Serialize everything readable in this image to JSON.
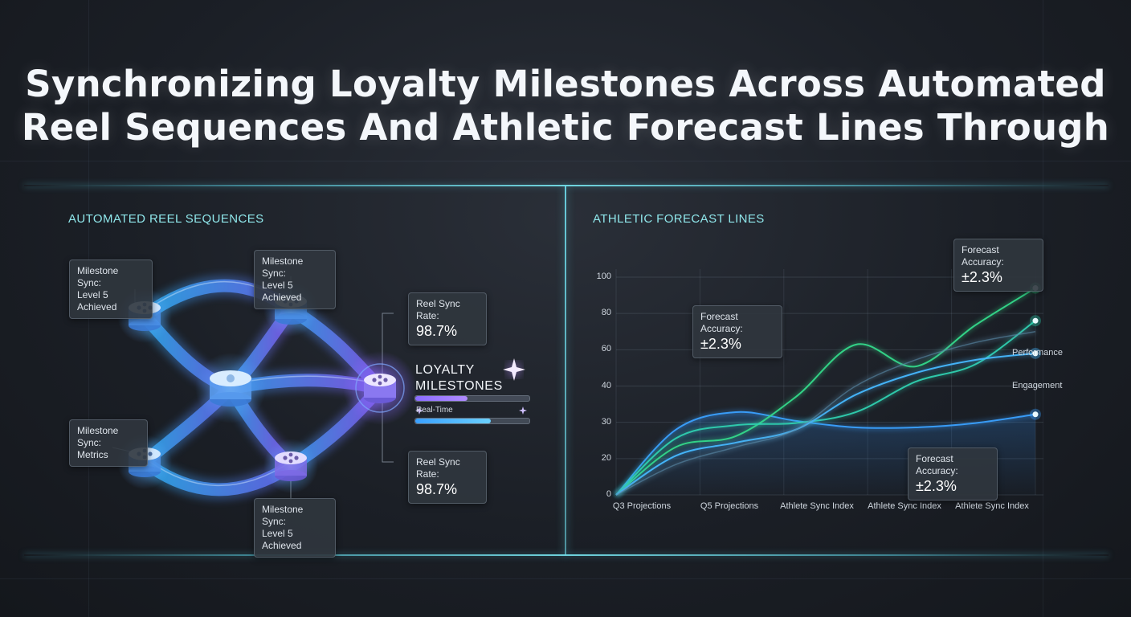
{
  "title": {
    "line1": "Synchronizing Loyalty Milestones Across Automated",
    "line2": "Reel Sequences And Athletic Forecast Lines Through"
  },
  "left_panel": {
    "label": "AUTOMATED REEL SEQUENCES",
    "callouts": [
      {
        "line1": "Milestone Sync:",
        "line2": "Level 5 Achieved"
      },
      {
        "line1": "Milestone Sync:",
        "line2": "Level 5 Achieved"
      },
      {
        "line1": "Milestone Sync:",
        "line2": "Metrics"
      },
      {
        "line1": "Milestone Sync:",
        "line2": "Level 5 Achieved"
      }
    ],
    "rate_cards": [
      {
        "label": "Reel Sync Rate:",
        "value": "98.7%"
      },
      {
        "label": "Reel Sync Rate:",
        "value": "98.7%"
      }
    ],
    "hub": {
      "title_line1": "LOYALTY",
      "title_line2": "MILESTONES",
      "realtime_label": "Real-Time",
      "bar1_fill": 0.46,
      "bar2_fill": 0.66
    }
  },
  "right_panel": {
    "label": "ATHLETIC FORECAST LINES",
    "accuracy_cards": [
      {
        "label": "Forecast Accuracy:",
        "value": "±2.3%"
      },
      {
        "label": "Forecast Accuracy:",
        "value": "±2.3%"
      },
      {
        "label": "Forecast Accuracy:",
        "value": "±2.3%"
      }
    ]
  },
  "chart_data": {
    "type": "line",
    "title": "",
    "xlabel": "",
    "ylabel": "",
    "ylim": [
      0,
      100
    ],
    "y_ticks": [
      "0",
      "20",
      "30",
      "40",
      "60",
      "80",
      "100"
    ],
    "x_tick_labels": [
      "Q3 Projections",
      "Q5 Projections",
      "Athlete Sync Index",
      "Athlete Sync Index",
      "Athlete Sync Index"
    ],
    "x": [
      0,
      1,
      2,
      3,
      4,
      5,
      6,
      7
    ],
    "grid": true,
    "series": [
      {
        "name": "",
        "color": "#3aa0ff",
        "values": [
          0,
          30,
          38,
          34,
          31,
          31,
          33,
          37
        ]
      },
      {
        "name": "",
        "color": "#34d98a",
        "values": [
          0,
          22,
          27,
          45,
          69,
          59,
          78,
          95
        ]
      },
      {
        "name": "",
        "color": "#2fd0b0",
        "values": [
          0,
          26,
          32,
          33,
          38,
          52,
          60,
          80
        ]
      },
      {
        "name": "",
        "color": "#46b8ff",
        "values": [
          0,
          18,
          24,
          30,
          46,
          56,
          62,
          65
        ]
      },
      {
        "name": "",
        "color": "#5a8aa8",
        "values": [
          0,
          14,
          22,
          30,
          50,
          62,
          70,
          75
        ]
      }
    ],
    "series_labels": [
      "Performance",
      "Engagement"
    ]
  }
}
